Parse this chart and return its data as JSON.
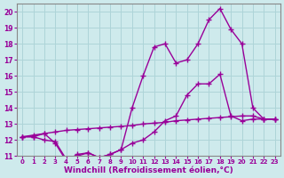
{
  "background_color": "#ceeaec",
  "grid_color": "#aed4d8",
  "line_color": "#990099",
  "marker": "+",
  "marker_size": 4,
  "line_width": 1.0,
  "xlabel": "Windchill (Refroidissement éolien,°C)",
  "xlabel_fontsize": 6.5,
  "xtick_fontsize": 5.0,
  "ytick_fontsize": 5.5,
  "xlim": [
    -0.5,
    23.5
  ],
  "ylim": [
    11,
    20.5
  ],
  "yticks": [
    11,
    12,
    13,
    14,
    15,
    16,
    17,
    18,
    19,
    20
  ],
  "xticks": [
    0,
    1,
    2,
    3,
    4,
    5,
    6,
    7,
    8,
    9,
    10,
    11,
    12,
    13,
    14,
    15,
    16,
    17,
    18,
    19,
    20,
    21,
    22,
    23
  ],
  "series1_x": [
    0,
    1,
    2,
    3,
    4,
    5,
    6,
    7,
    8,
    9,
    10,
    11,
    12,
    13,
    14,
    15,
    16,
    17,
    18,
    19,
    20,
    21,
    22,
    23
  ],
  "series1_y": [
    12.2,
    12.2,
    12.0,
    11.9,
    10.8,
    11.0,
    11.2,
    10.9,
    11.1,
    11.4,
    11.8,
    12.0,
    12.5,
    13.2,
    13.5,
    14.8,
    15.5,
    15.5,
    16.1,
    13.5,
    13.2,
    13.3,
    13.3,
    13.3
  ],
  "series2_x": [
    0,
    1,
    2,
    3,
    4,
    5,
    6,
    7,
    8,
    9,
    10,
    11,
    12,
    13,
    14,
    15,
    16,
    17,
    18,
    19,
    20,
    21,
    22,
    23
  ],
  "series2_y": [
    12.2,
    12.3,
    12.4,
    12.5,
    12.6,
    12.65,
    12.7,
    12.75,
    12.8,
    12.85,
    12.9,
    13.0,
    13.05,
    13.1,
    13.2,
    13.25,
    13.3,
    13.35,
    13.4,
    13.45,
    13.5,
    13.5,
    13.3,
    13.3
  ],
  "series3_x": [
    0,
    1,
    2,
    3,
    4,
    5,
    6,
    7,
    8,
    9,
    10,
    11,
    12,
    13,
    14,
    15,
    16,
    17,
    18,
    19,
    20,
    21,
    22,
    23
  ],
  "series3_y": [
    12.2,
    12.2,
    12.4,
    11.8,
    10.7,
    11.1,
    11.2,
    10.9,
    11.1,
    11.4,
    14.0,
    16.0,
    17.8,
    18.0,
    16.8,
    17.0,
    18.0,
    19.5,
    20.2,
    18.9,
    18.0,
    14.0,
    13.3,
    13.3
  ]
}
